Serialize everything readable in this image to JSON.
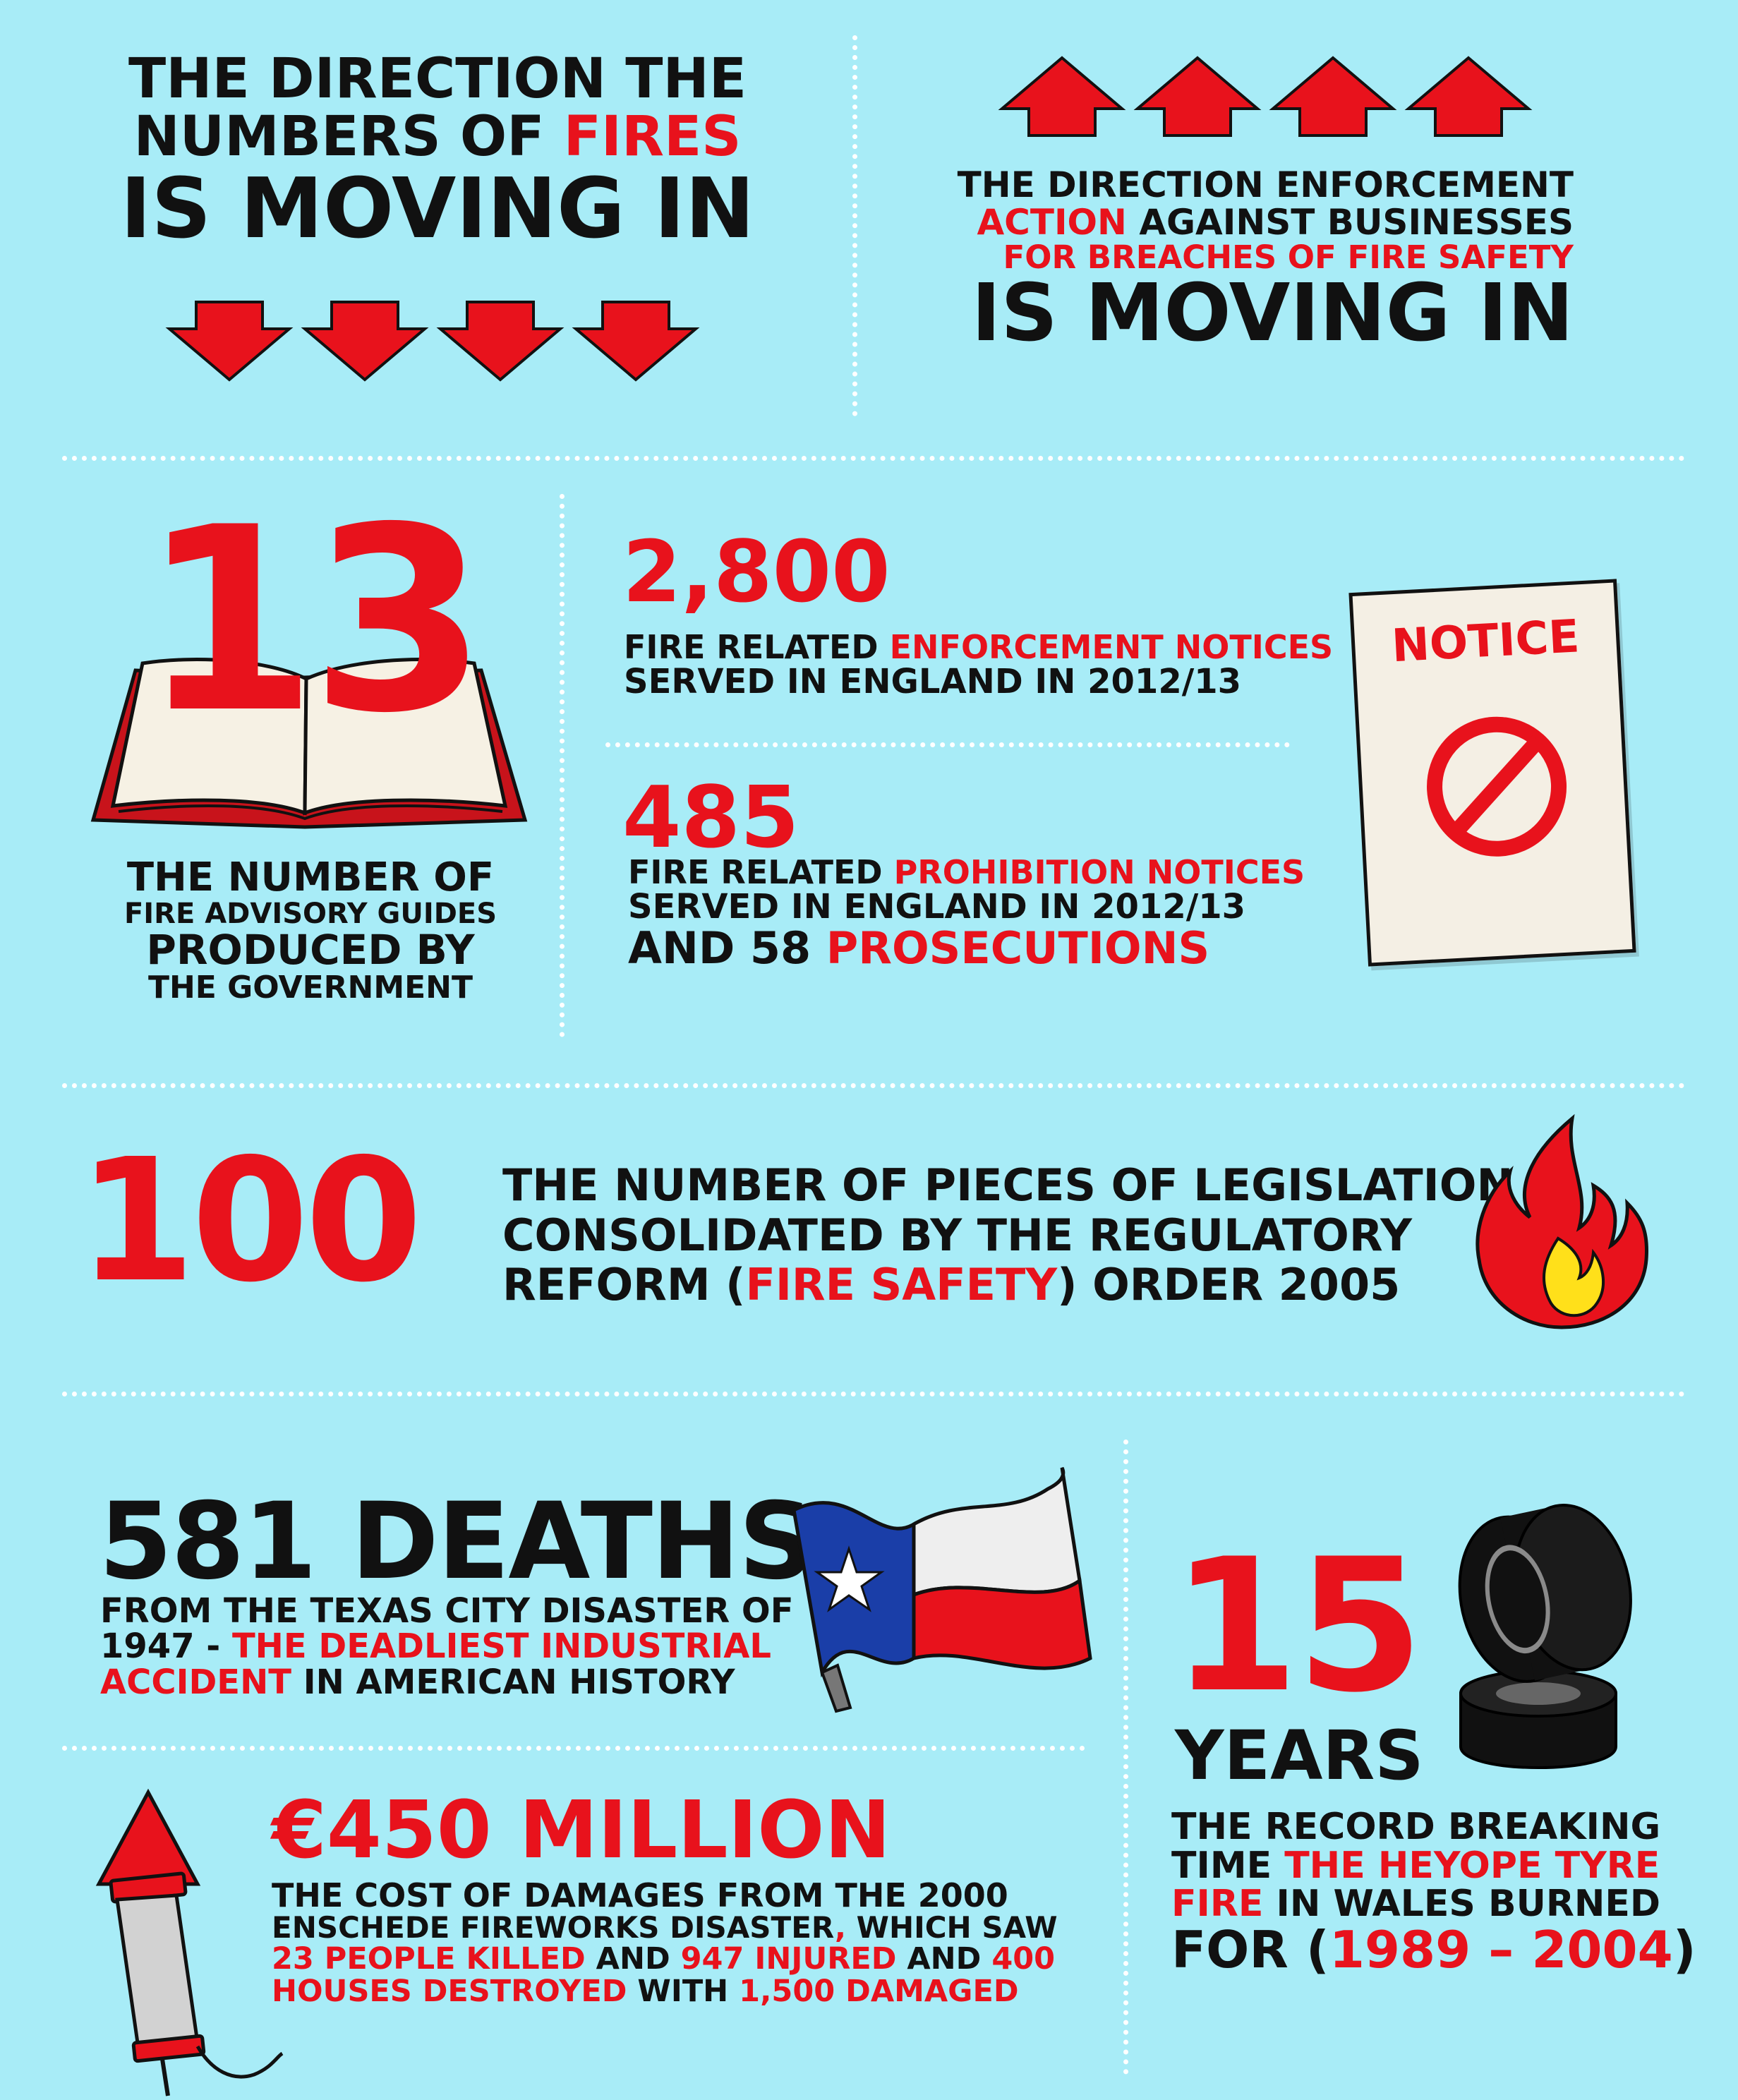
{
  "colors": {
    "background": "#a8ecf7",
    "accent_red": "#e8121c",
    "text_dark": "#111111",
    "flame_yellow": "#ffe01a",
    "flag_blue": "#1a3ea8"
  },
  "icons": [
    "down-arrow-icon",
    "up-arrow-icon",
    "open-book-icon",
    "notice-prohibition-icon",
    "flame-icon",
    "texas-flag-icon",
    "tyre-stack-icon",
    "firework-rocket-icon"
  ],
  "fires_section": {
    "line1": "THE DIRECTION THE",
    "line2_pre": "NUMBERS OF ",
    "line2_red": "FIRES",
    "line3": "IS MOVING IN"
  },
  "enforcement_section": {
    "line1": "THE DIRECTION ENFORCEMENT",
    "line2_red": "ACTION",
    "line2_post": " AGAINST BUSINESSES",
    "line3_red": "FOR BREACHES OF FIRE SAFETY",
    "line4": "IS MOVING IN"
  },
  "guides": {
    "number": "13",
    "line1": "THE NUMBER OF",
    "line2": "FIRE ADVISORY GUIDES",
    "line3": "PRODUCED BY",
    "line4": "THE GOVERNMENT"
  },
  "enforcement_notices": {
    "number": "2,800",
    "line1_pre": "FIRE RELATED ",
    "line1_red": "ENFORCEMENT NOTICES",
    "line2": "SERVED IN ENGLAND IN 2012/13"
  },
  "prohibition_notices": {
    "number": "485",
    "line1_pre": "FIRE RELATED ",
    "line1_red": "PROHIBITION NOTICES",
    "line2": "SERVED IN ENGLAND IN 2012/13",
    "line3_pre": "AND 58 ",
    "line3_red": "PROSECUTIONS"
  },
  "notice_sign": {
    "label": "NOTICE"
  },
  "legislation": {
    "number": "100",
    "line1": "THE NUMBER OF PIECES OF LEGISLATION",
    "line2": "CONSOLIDATED BY THE REGULATORY",
    "line3_pre": "REFORM (",
    "line3_red": "FIRE SAFETY",
    "line3_post": ") ORDER 2005"
  },
  "texas": {
    "headline": "581 DEATHS",
    "line1": "FROM THE TEXAS CITY DISASTER OF",
    "line2_pre": "1947 - ",
    "line2_red": "THE DEADLIEST INDUSTRIAL",
    "line3_red": "ACCIDENT",
    "line3_post": " IN AMERICAN HISTORY"
  },
  "tyre": {
    "number": "15",
    "unit": "YEARS",
    "line1": "THE RECORD BREAKING",
    "line2_pre": "TIME ",
    "line2_red": "THE HEYOPE TYRE",
    "line3_red": "FIRE",
    "line3_post": " IN WALES BURNED",
    "line4_pre": "FOR (",
    "line4_red": "1989 – 2004",
    "line4_post": ")"
  },
  "enschede": {
    "headline": "€450 MILLION",
    "line1": "THE COST OF DAMAGES FROM THE 2000",
    "line2_pre": "ENSCHEDE FIREWORKS DISASTER",
    "line2_red": ",",
    "line2_post": " WHICH SAW",
    "line3_red1": "23 PEOPLE KILLED",
    "line3_mid": " AND ",
    "line3_red2": "947 INJURED",
    "line3_mid2": " AND ",
    "line3_red3": "400",
    "line4_red": "HOUSES DESTROYED",
    "line4_mid": " WITH ",
    "line4_red2": "1,500 DAMAGED"
  }
}
